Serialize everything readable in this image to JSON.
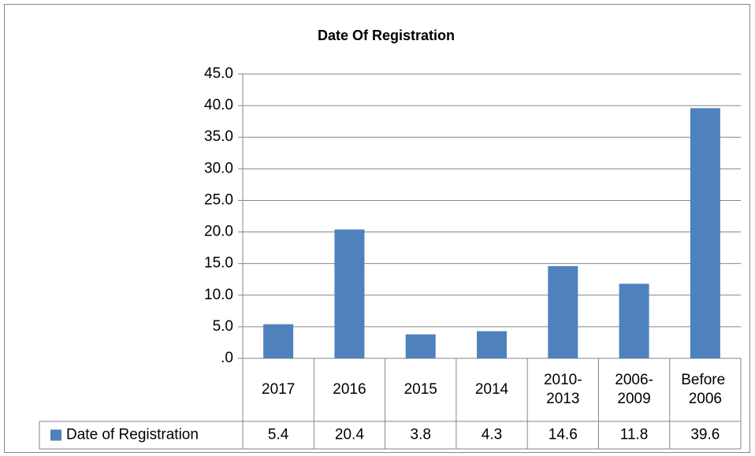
{
  "chart_data": {
    "type": "bar",
    "title": "Date Of Registration",
    "categories": [
      "2017",
      "2016",
      "2015",
      "2014",
      "2010-2013",
      "2006-2009",
      "Before 2006"
    ],
    "series": [
      {
        "name": "Date of Registration",
        "color": "#4f81bd",
        "values": [
          5.4,
          20.4,
          3.8,
          4.3,
          14.6,
          11.8,
          39.6
        ]
      }
    ],
    "ylim": [
      0,
      45
    ],
    "yticks": [
      {
        "value": 0,
        "label": ".0"
      },
      {
        "value": 5,
        "label": "5.0"
      },
      {
        "value": 10,
        "label": "10.0"
      },
      {
        "value": 15,
        "label": "15.0"
      },
      {
        "value": 20,
        "label": "20.0"
      },
      {
        "value": 25,
        "label": "25.0"
      },
      {
        "value": 30,
        "label": "30.0"
      },
      {
        "value": 35,
        "label": "35.0"
      },
      {
        "value": 40,
        "label": "40.0"
      },
      {
        "value": 45,
        "label": "45.0"
      }
    ],
    "grid": true
  }
}
